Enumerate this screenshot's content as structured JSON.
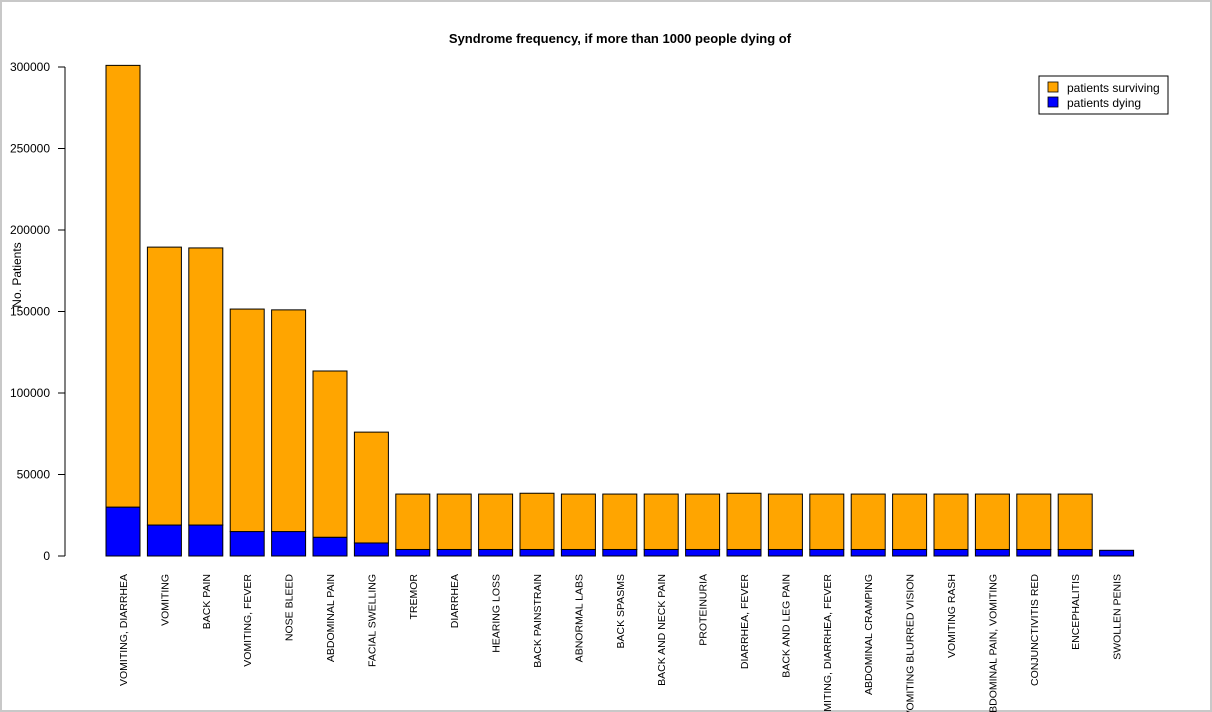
{
  "chart_data": {
    "type": "bar",
    "stacked": true,
    "title": "Syndrome frequency, if more than 1000 people dying of",
    "ylabel": "No. Patients",
    "xlabel": "",
    "ylim": [
      0,
      300000
    ],
    "yticks": [
      0,
      50000,
      100000,
      150000,
      200000,
      250000,
      300000
    ],
    "ytick_labels": [
      "0",
      "50000",
      "100000",
      "150000",
      "200000",
      "250000",
      "300000"
    ],
    "legend_position": "top-right",
    "categories": [
      "VOMITING, DIARRHEA",
      "VOMITING",
      "BACK PAIN",
      "VOMITING, FEVER",
      "NOSE BLEED",
      "ABDOMINAL PAIN",
      "FACIAL SWELLING",
      "TREMOR",
      "DIARRHEA",
      "HEARING LOSS",
      "BACK PAINSTRAIN",
      "ABNORMAL LABS",
      "BACK SPASMS",
      "BACK AND NECK PAIN",
      "PROTEINURIA",
      "DIARRHEA, FEVER",
      "BACK AND LEG PAIN",
      "VOMITING, DIARRHEA, FEVER",
      "ABDOMINAL CRAMPING",
      "VOMITING BLURRED VISION",
      "VOMITING RASH",
      "ABDOMINAL PAIN, VOMITING",
      "CONJUNCTIVITIS RED",
      "ENCEPHALITIS",
      "SWOLLEN PENIS"
    ],
    "series": [
      {
        "name": "patients dying",
        "color": "#0000ff",
        "values": [
          30000,
          19000,
          19000,
          15000,
          15000,
          11500,
          8000,
          4000,
          4000,
          4000,
          4000,
          4000,
          4000,
          4000,
          4000,
          4000,
          4000,
          4000,
          4000,
          4000,
          4000,
          4000,
          4000,
          4000,
          3500
        ]
      },
      {
        "name": "patients surviving",
        "color": "#ffa500",
        "values": [
          271000,
          170500,
          170000,
          136500,
          136000,
          102000,
          68000,
          34000,
          34000,
          34000,
          34500,
          34000,
          34000,
          34000,
          34000,
          34500,
          34000,
          34000,
          34000,
          34000,
          34000,
          34000,
          34000,
          34000,
          0
        ]
      }
    ]
  }
}
